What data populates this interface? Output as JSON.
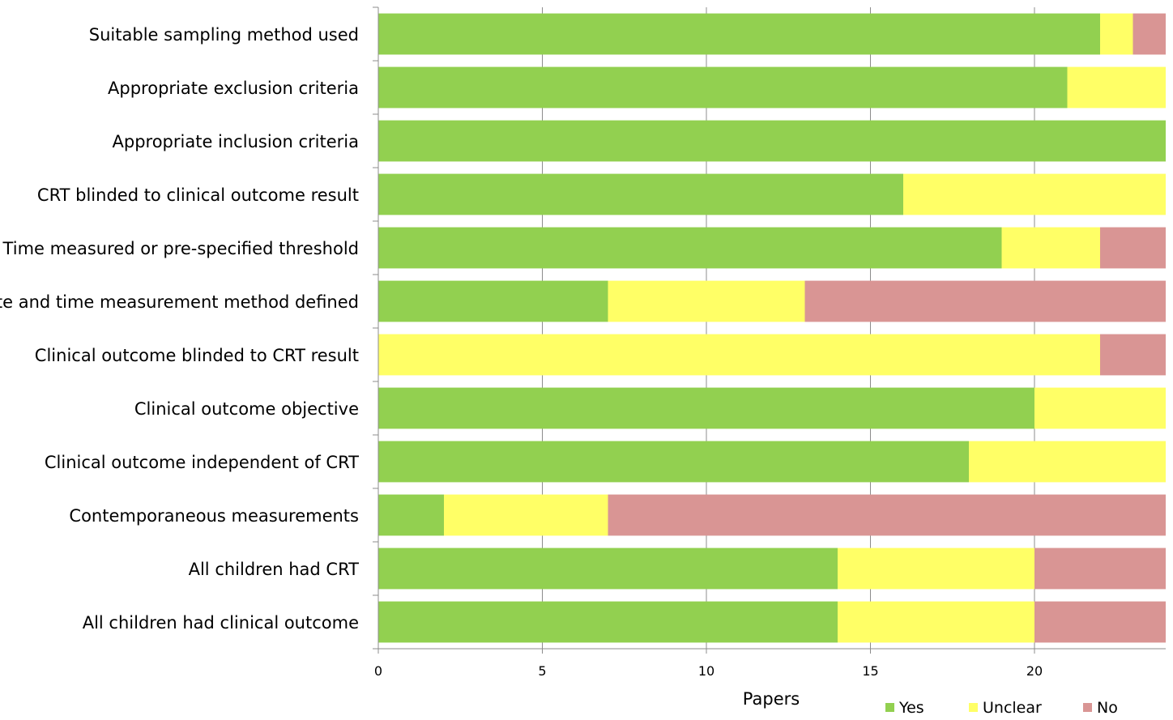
{
  "chart_data": {
    "type": "bar",
    "orientation": "horizontal",
    "stacked": true,
    "title": "",
    "xlabel": "Papers",
    "ylabel": "",
    "xlim": [
      0,
      24
    ],
    "x_ticks": [
      "0",
      "5",
      "10",
      "15",
      "20"
    ],
    "grid": "vertical major gridlines",
    "legend_position": "bottom-right",
    "categories": [
      "Suitable sampling method used",
      "Appropriate exclusion criteria",
      "Appropriate inclusion criteria",
      "CRT blinded to clinical outcome result",
      "Time measured or pre-specified threshold",
      "Site and time measurement method defined",
      "Clinical outcome blinded to CRT result",
      "Clinical outcome objective",
      "Clinical outcome independent of CRT",
      "Contemporaneous measurements",
      "All children had CRT",
      "All children had clinical outcome"
    ],
    "series": [
      {
        "name": "Yes",
        "color": "#92d050",
        "values": [
          22,
          21,
          24,
          16,
          19,
          7,
          0,
          20,
          18,
          2,
          14,
          14
        ]
      },
      {
        "name": "Unclear",
        "color": "#ffff66",
        "values": [
          1,
          3,
          0,
          8,
          3,
          6,
          22,
          4,
          6,
          5,
          6,
          6
        ]
      },
      {
        "name": "No",
        "color": "#d99594",
        "values": [
          1,
          0,
          0,
          0,
          2,
          11,
          2,
          0,
          0,
          17,
          4,
          4
        ]
      }
    ]
  }
}
